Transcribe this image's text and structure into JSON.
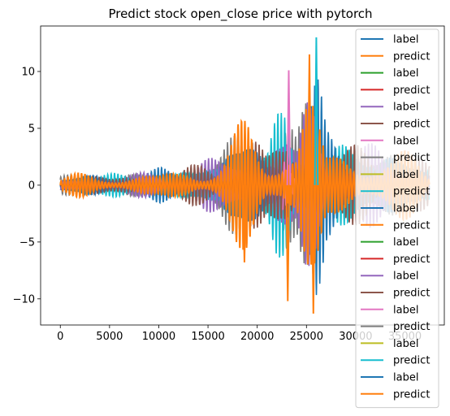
{
  "chart_data": {
    "type": "line",
    "title": "Predict stock open_close price with pytorch",
    "xlabel": "",
    "ylabel": "",
    "xlim": [
      -2000,
      39000
    ],
    "ylim": [
      -12.3,
      14.0
    ],
    "x_ticks": [
      0,
      5000,
      10000,
      15000,
      20000,
      25000,
      30000,
      35000
    ],
    "x_tick_labels": [
      "0",
      "5000",
      "10000",
      "15000",
      "20000",
      "25000",
      "30000",
      "35000"
    ],
    "y_ticks": [
      -10,
      -5,
      0,
      5,
      10
    ],
    "y_tick_labels": [
      "−10",
      "−5",
      "0",
      "5",
      "10"
    ],
    "grid": false,
    "legend_position": "right",
    "legend": [
      {
        "label": "label",
        "color": "#1f77b4"
      },
      {
        "label": "predict",
        "color": "#ff7f0e"
      },
      {
        "label": "label",
        "color": "#2ca02c"
      },
      {
        "label": "predict",
        "color": "#d62728"
      },
      {
        "label": "label",
        "color": "#9467bd"
      },
      {
        "label": "predict",
        "color": "#8c564b"
      },
      {
        "label": "label",
        "color": "#e377c2"
      },
      {
        "label": "predict",
        "color": "#7f7f7f"
      },
      {
        "label": "label",
        "color": "#bcbd22"
      },
      {
        "label": "predict",
        "color": "#17becf"
      },
      {
        "label": "label",
        "color": "#1f77b4"
      },
      {
        "label": "predict",
        "color": "#ff7f0e"
      },
      {
        "label": "label",
        "color": "#2ca02c"
      },
      {
        "label": "predict",
        "color": "#d62728"
      },
      {
        "label": "label",
        "color": "#9467bd"
      },
      {
        "label": "predict",
        "color": "#8c564b"
      },
      {
        "label": "label",
        "color": "#e377c2"
      },
      {
        "label": "predict",
        "color": "#7f7f7f"
      },
      {
        "label": "label",
        "color": "#bcbd22"
      },
      {
        "label": "predict",
        "color": "#17becf"
      },
      {
        "label": "label",
        "color": "#1f77b4"
      },
      {
        "label": "predict",
        "color": "#ff7f0e"
      }
    ],
    "series_envelope": {
      "description": "oscillating series values; amplitude envelope by x",
      "x": [
        0,
        2500,
        5000,
        8000,
        10000,
        12000,
        14000,
        16000,
        18000,
        19000,
        21000,
        22000,
        23000,
        24000,
        25000,
        26000,
        27000,
        30000,
        33000,
        36000,
        37500
      ],
      "amplitude": [
        0.8,
        1.2,
        1.0,
        1.3,
        1.6,
        1.5,
        2.0,
        3.0,
        5.5,
        6.0,
        3.5,
        6.5,
        7.5,
        4.5,
        10.5,
        11.5,
        5.0,
        4.0,
        3.5,
        3.0,
        2.0
      ]
    },
    "peaks": [
      {
        "series": "predict",
        "x": 25300,
        "y": 11.5
      },
      {
        "series": "predict",
        "x": 26000,
        "y": 13.0
      },
      {
        "series": "label",
        "x": 23200,
        "y": 10.1
      },
      {
        "series": "predict",
        "x": 23100,
        "y": -10.2
      },
      {
        "series": "predict",
        "x": 25700,
        "y": -11.3
      },
      {
        "series": "predict",
        "x": 18700,
        "y": -6.8
      }
    ]
  }
}
